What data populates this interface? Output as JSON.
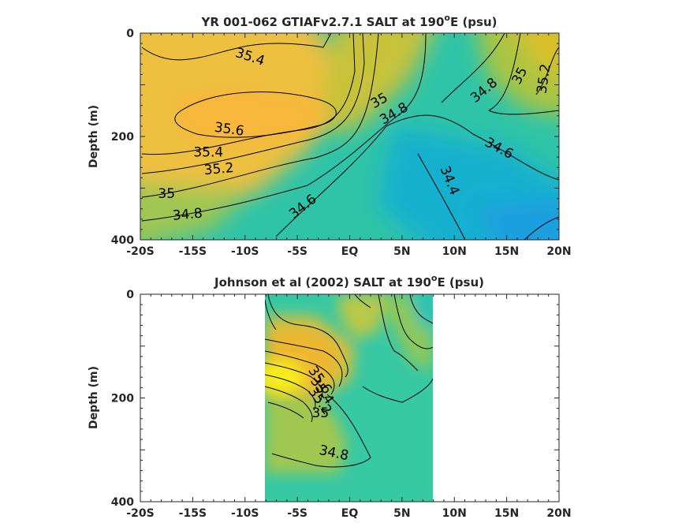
{
  "chart_data": [
    {
      "type": "heatmap",
      "title_main": "YR 001-062 GTIAFv2.7.1 SALT at 190",
      "title_sup": "o",
      "title_tail": "E (psu)",
      "ylabel": "Depth (m)",
      "xlabel": "",
      "xlim": [
        -20,
        20
      ],
      "ylim": [
        0,
        400
      ],
      "y_reversed": true,
      "xticks": [
        -20,
        -15,
        -10,
        -5,
        0,
        5,
        10,
        15,
        20
      ],
      "xtick_labels": [
        "-20S",
        "-15S",
        "-10S",
        "-5S",
        "EQ",
        "5N",
        "10N",
        "15N",
        "20N"
      ],
      "yticks": [
        0,
        200,
        400
      ],
      "ytick_labels": [
        "0",
        "200",
        "400"
      ],
      "colormap": "parula",
      "contour_labels": [
        {
          "text": "35.4",
          "lat": -9.5,
          "depth": 45,
          "angle": 18
        },
        {
          "text": "35.6",
          "lat": -11.5,
          "depth": 185,
          "angle": 8
        },
        {
          "text": "35.4",
          "lat": -13.5,
          "depth": 230,
          "angle": 0
        },
        {
          "text": "35.2",
          "lat": -12.5,
          "depth": 262,
          "angle": -5
        },
        {
          "text": "35",
          "lat": -17.5,
          "depth": 310,
          "angle": 0
        },
        {
          "text": "34.8",
          "lat": -15.5,
          "depth": 350,
          "angle": -5
        },
        {
          "text": "34.6",
          "lat": -4.5,
          "depth": 335,
          "angle": -38
        },
        {
          "text": "35",
          "lat": 2.8,
          "depth": 130,
          "angle": -30
        },
        {
          "text": "34.8",
          "lat": 4.2,
          "depth": 155,
          "angle": -30
        },
        {
          "text": "34.8",
          "lat": 12.8,
          "depth": 110,
          "angle": -40
        },
        {
          "text": "35",
          "lat": 16.2,
          "depth": 82,
          "angle": -62
        },
        {
          "text": "35.2",
          "lat": 18.5,
          "depth": 88,
          "angle": -82
        },
        {
          "text": "34.6",
          "lat": 14.3,
          "depth": 222,
          "angle": 28
        },
        {
          "text": "34.4",
          "lat": 9.6,
          "depth": 285,
          "angle": 68
        }
      ]
    },
    {
      "type": "heatmap",
      "title_main": "Johnson et al (2002) SALT at 190",
      "title_sup": "o",
      "title_tail": "E (psu)",
      "ylabel": "Depth (m)",
      "xlabel": "",
      "xlim": [
        -20,
        20
      ],
      "ylim": [
        0,
        400
      ],
      "y_reversed": true,
      "data_extent": [
        -8,
        8
      ],
      "xticks": [
        -20,
        -15,
        -10,
        -5,
        0,
        5,
        10,
        15,
        20
      ],
      "xtick_labels": [
        "-20S",
        "-15S",
        "-10S",
        "-5S",
        "EQ",
        "5N",
        "10N",
        "15N",
        "20N"
      ],
      "yticks": [
        0,
        200,
        400
      ],
      "ytick_labels": [
        "0",
        "200",
        "400"
      ],
      "colormap": "parula",
      "contour_labels": [
        {
          "text": "35.6",
          "lat": -2.8,
          "depth": 165,
          "angle": 55
        },
        {
          "text": "35.4",
          "lat": -2.6,
          "depth": 185,
          "angle": 55
        },
        {
          "text": "35.2",
          "lat": -2.8,
          "depth": 205,
          "angle": 55
        },
        {
          "text": "35",
          "lat": -2.8,
          "depth": 228,
          "angle": 0
        },
        {
          "text": "34.8",
          "lat": -1.5,
          "depth": 305,
          "angle": 12
        }
      ]
    }
  ]
}
